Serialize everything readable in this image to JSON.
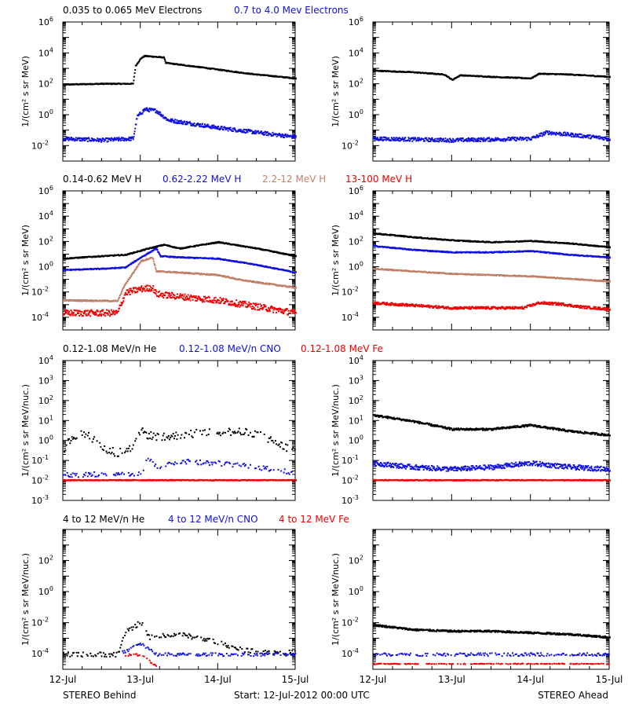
{
  "footer": {
    "left": "STEREO Behind",
    "center": "Start: 12-Jul-2012 00:00 UTC",
    "right": "STEREO Ahead"
  },
  "x_axis": {
    "ticks": [
      "12-Jul",
      "13-Jul",
      "14-Jul",
      "15-Jul"
    ],
    "range_days": [
      0,
      3
    ]
  },
  "colors": {
    "black": "#000000",
    "blue": "#1010dd",
    "tan": "#c08068",
    "red": "#ee0000"
  },
  "chart_data": [
    {
      "type": "scatter",
      "panel": "row1-left",
      "ylabel": "1/(cm² s sr MeV)",
      "ylim_log10": [
        -3,
        6
      ],
      "ytick_exponents": [
        -2,
        0,
        2,
        4,
        6
      ],
      "ytick_style": "power",
      "legend": [
        {
          "text": "0.035 to 0.065 MeV Electrons",
          "color": "black"
        },
        {
          "text": "0.7 to 4.0 Mev Electrons",
          "color": "blue"
        }
      ],
      "series": [
        {
          "name": "0.035 to 0.065 MeV Electrons",
          "color": "black",
          "noise": 0.03,
          "points": [
            [
              0,
              2.0
            ],
            [
              0.5,
              2.05
            ],
            [
              0.9,
              2.05
            ],
            [
              0.93,
              3.2
            ],
            [
              1.0,
              3.7
            ],
            [
              1.05,
              3.85
            ],
            [
              1.3,
              3.75
            ],
            [
              1.32,
              3.4
            ],
            [
              1.8,
              3.1
            ],
            [
              2.4,
              2.7
            ],
            [
              3.0,
              2.4
            ]
          ]
        },
        {
          "name": "0.7 to 4.0 Mev Electrons",
          "color": "blue",
          "noise": 0.12,
          "points": [
            [
              0,
              -1.5
            ],
            [
              0.5,
              -1.6
            ],
            [
              0.9,
              -1.5
            ],
            [
              0.95,
              -0.1
            ],
            [
              1.05,
              0.4
            ],
            [
              1.2,
              0.3
            ],
            [
              1.35,
              -0.3
            ],
            [
              2.0,
              -0.8
            ],
            [
              3.0,
              -1.4
            ]
          ]
        }
      ]
    },
    {
      "type": "scatter",
      "panel": "row1-right",
      "ylabel": "1/(cm² s sr MeV)",
      "ylim_log10": [
        -3,
        6
      ],
      "ytick_exponents": [
        -2,
        0,
        2,
        4,
        6
      ],
      "ytick_style": "power",
      "series": [
        {
          "color": "black",
          "noise": 0.03,
          "points": [
            [
              0,
              2.9
            ],
            [
              0.5,
              2.8
            ],
            [
              0.9,
              2.65
            ],
            [
              1.0,
              2.3
            ],
            [
              1.1,
              2.6
            ],
            [
              1.5,
              2.5
            ],
            [
              2.0,
              2.4
            ],
            [
              2.1,
              2.7
            ],
            [
              2.5,
              2.65
            ],
            [
              3.0,
              2.5
            ]
          ]
        },
        {
          "color": "blue",
          "noise": 0.12,
          "points": [
            [
              0,
              -1.5
            ],
            [
              1.0,
              -1.6
            ],
            [
              1.5,
              -1.55
            ],
            [
              2.0,
              -1.5
            ],
            [
              2.2,
              -1.1
            ],
            [
              2.6,
              -1.3
            ],
            [
              3.0,
              -1.5
            ]
          ]
        }
      ]
    },
    {
      "type": "scatter",
      "panel": "row2-left",
      "ylabel": "1/(cm² s sr MeV)",
      "ylim_log10": [
        -5,
        6
      ],
      "ytick_exponents": [
        -4,
        -2,
        0,
        2,
        4,
        6
      ],
      "ytick_style": "power",
      "legend": [
        {
          "text": "0.14-0.62 MeV H",
          "color": "black"
        },
        {
          "text": "0.62-2.22 MeV H",
          "color": "blue"
        },
        {
          "text": "2.2-12 MeV H",
          "color": "tan"
        },
        {
          "text": "13-100 MeV H",
          "color": "red"
        }
      ],
      "series": [
        {
          "name": "0.14-0.62 MeV H",
          "color": "black",
          "noise": 0.04,
          "points": [
            [
              0,
              0.7
            ],
            [
              0.5,
              0.9
            ],
            [
              0.8,
              1.0
            ],
            [
              1.1,
              1.5
            ],
            [
              1.3,
              1.8
            ],
            [
              1.5,
              1.5
            ],
            [
              2.0,
              2.0
            ],
            [
              2.5,
              1.5
            ],
            [
              3.0,
              0.9
            ]
          ]
        },
        {
          "name": "0.62-2.22 MeV H",
          "color": "blue",
          "noise": 0.04,
          "points": [
            [
              0,
              -0.2
            ],
            [
              0.5,
              -0.1
            ],
            [
              0.8,
              0.0
            ],
            [
              1.0,
              0.8
            ],
            [
              1.2,
              1.5
            ],
            [
              1.25,
              0.9
            ],
            [
              1.5,
              0.8
            ],
            [
              2.0,
              0.7
            ],
            [
              2.5,
              0.2
            ],
            [
              3.0,
              -0.4
            ]
          ]
        },
        {
          "name": "2.2-12 MeV H",
          "color": "tan",
          "noise": 0.05,
          "points": [
            [
              0,
              -2.6
            ],
            [
              0.7,
              -2.65
            ],
            [
              0.78,
              -1.5
            ],
            [
              1.0,
              0.5
            ],
            [
              1.15,
              0.8
            ],
            [
              1.2,
              -0.3
            ],
            [
              1.5,
              -0.4
            ],
            [
              2.0,
              -0.6
            ],
            [
              2.3,
              -1.0
            ],
            [
              3.0,
              -1.6
            ]
          ]
        },
        {
          "name": "13-100 MeV H",
          "color": "red",
          "noise": 0.25,
          "points": [
            [
              0,
              -3.6
            ],
            [
              0.7,
              -3.6
            ],
            [
              0.8,
              -2.0
            ],
            [
              1.0,
              -1.7
            ],
            [
              1.15,
              -1.6
            ],
            [
              1.2,
              -2.1
            ],
            [
              1.5,
              -2.3
            ],
            [
              2.0,
              -2.6
            ],
            [
              2.5,
              -3.1
            ],
            [
              3.0,
              -3.6
            ]
          ]
        }
      ]
    },
    {
      "type": "scatter",
      "panel": "row2-right",
      "ylabel": "1/(cm² s sr MeV)",
      "ylim_log10": [
        -5,
        6
      ],
      "ytick_exponents": [
        -4,
        -2,
        0,
        2,
        4,
        6
      ],
      "ytick_style": "power",
      "series": [
        {
          "color": "black",
          "noise": 0.04,
          "points": [
            [
              0,
              2.7
            ],
            [
              0.5,
              2.4
            ],
            [
              1.0,
              2.15
            ],
            [
              1.5,
              2.0
            ],
            [
              2.0,
              2.1
            ],
            [
              2.5,
              1.9
            ],
            [
              3.0,
              1.6
            ]
          ]
        },
        {
          "color": "blue",
          "noise": 0.04,
          "points": [
            [
              0,
              1.7
            ],
            [
              0.5,
              1.4
            ],
            [
              1.0,
              1.2
            ],
            [
              1.5,
              1.2
            ],
            [
              2.0,
              1.3
            ],
            [
              2.5,
              1.0
            ],
            [
              3.0,
              0.8
            ]
          ]
        },
        {
          "color": "tan",
          "noise": 0.04,
          "points": [
            [
              0,
              -0.1
            ],
            [
              0.5,
              -0.3
            ],
            [
              1.0,
              -0.5
            ],
            [
              1.5,
              -0.6
            ],
            [
              2.0,
              -0.7
            ],
            [
              2.5,
              -0.9
            ],
            [
              3.0,
              -1.1
            ]
          ]
        },
        {
          "color": "red",
          "noise": 0.1,
          "points": [
            [
              0,
              -2.8
            ],
            [
              0.5,
              -3.0
            ],
            [
              1.0,
              -3.2
            ],
            [
              1.5,
              -3.2
            ],
            [
              1.9,
              -3.2
            ],
            [
              2.1,
              -2.8
            ],
            [
              2.4,
              -2.9
            ],
            [
              2.6,
              -3.1
            ],
            [
              3.0,
              -3.3
            ]
          ]
        }
      ]
    },
    {
      "type": "scatter",
      "panel": "row3-left",
      "ylabel": "1/(cm² s sr MeV/nuc.)",
      "ylim_log10": [
        -3,
        4
      ],
      "ytick_exponents": [
        -3,
        -2,
        -1,
        0,
        1,
        2,
        3,
        4
      ],
      "ytick_style": "power",
      "legend": [
        {
          "text": "0.12-1.08 MeV/n He",
          "color": "black"
        },
        {
          "text": "0.12-1.08 MeV/n CNO",
          "color": "blue"
        },
        {
          "text": "0.12-1.08 MeV Fe",
          "color": "red"
        }
      ],
      "series": [
        {
          "name": "0.12-1.08 MeV/n He",
          "color": "black",
          "noise": 0.2,
          "sparse": true,
          "points": [
            [
              0,
              -0.5
            ],
            [
              0.1,
              0.2
            ],
            [
              0.3,
              0.4
            ],
            [
              0.5,
              -0.3
            ],
            [
              0.7,
              -0.6
            ],
            [
              0.9,
              -0.3
            ],
            [
              1.0,
              0.5
            ],
            [
              1.1,
              0.3
            ],
            [
              1.3,
              0.2
            ],
            [
              1.5,
              0.3
            ],
            [
              2.0,
              0.5
            ],
            [
              2.5,
              0.4
            ],
            [
              2.8,
              -0.2
            ],
            [
              3.0,
              -0.5
            ]
          ]
        },
        {
          "name": "0.12-1.08 MeV/n CNO",
          "color": "blue",
          "noise": 0.12,
          "sparse": true,
          "points": [
            [
              0,
              -1.7
            ],
            [
              1.0,
              -1.6
            ],
            [
              1.1,
              -0.8
            ],
            [
              1.2,
              -1.3
            ],
            [
              1.5,
              -1.0
            ],
            [
              2.0,
              -1.1
            ],
            [
              2.5,
              -1.3
            ],
            [
              3.0,
              -1.6
            ]
          ]
        },
        {
          "name": "0.12-1.08 MeV Fe",
          "color": "red",
          "noise": 0.02,
          "points": [
            [
              0,
              -1.95
            ],
            [
              3.0,
              -1.95
            ]
          ]
        }
      ]
    },
    {
      "type": "scatter",
      "panel": "row3-right",
      "ylabel": "1/(cm² s sr MeV/nuc.)",
      "ylim_log10": [
        -3,
        4
      ],
      "ytick_exponents": [
        -3,
        -2,
        -1,
        0,
        1,
        2,
        3,
        4
      ],
      "ytick_style": "power",
      "series": [
        {
          "color": "black",
          "noise": 0.05,
          "points": [
            [
              0,
              1.3
            ],
            [
              0.5,
              1.0
            ],
            [
              1.0,
              0.6
            ],
            [
              1.5,
              0.6
            ],
            [
              2.0,
              0.8
            ],
            [
              2.5,
              0.5
            ],
            [
              3.0,
              0.3
            ]
          ]
        },
        {
          "color": "blue",
          "noise": 0.12,
          "points": [
            [
              0,
              -1.1
            ],
            [
              0.5,
              -1.3
            ],
            [
              1.0,
              -1.4
            ],
            [
              1.5,
              -1.3
            ],
            [
              2.0,
              -1.1
            ],
            [
              2.5,
              -1.3
            ],
            [
              3.0,
              -1.4
            ]
          ]
        },
        {
          "color": "red",
          "noise": 0.02,
          "points": [
            [
              0,
              -1.95
            ],
            [
              3.0,
              -1.95
            ]
          ]
        }
      ]
    },
    {
      "type": "scatter",
      "panel": "row4-left",
      "ylabel": "1/(cm² s sr MeV/nuc.)",
      "ylim_log10": [
        -5,
        4
      ],
      "ytick_exponents": [
        -4,
        -2,
        0,
        2
      ],
      "ytick_style": "power",
      "legend": [
        {
          "text": "4 to 12 MeV/n He",
          "color": "black"
        },
        {
          "text": "4 to 12 MeV/n CNO",
          "color": "blue"
        },
        {
          "text": "4 to 12 MeV Fe",
          "color": "red"
        }
      ],
      "series": [
        {
          "name": "4 to 12 MeV/n He",
          "color": "black",
          "noise": 0.15,
          "sparse": true,
          "points": [
            [
              0,
              -4.0
            ],
            [
              0.7,
              -4.0
            ],
            [
              0.8,
              -2.6
            ],
            [
              1.0,
              -1.9
            ],
            [
              1.1,
              -2.9
            ],
            [
              1.5,
              -2.7
            ],
            [
              2.0,
              -3.2
            ],
            [
              2.2,
              -3.6
            ],
            [
              2.5,
              -3.8
            ],
            [
              3.0,
              -3.9
            ]
          ]
        },
        {
          "name": "4 to 12 MeV/n CNO",
          "color": "blue",
          "noise": 0.1,
          "sparse": true,
          "points": [
            [
              0.75,
              -3.9
            ],
            [
              1.0,
              -3.3
            ],
            [
              1.2,
              -4.0
            ],
            [
              3.0,
              -4.0
            ]
          ]
        },
        {
          "name": "4 to 12 MeV Fe",
          "color": "red",
          "noise": 0.1,
          "sparse": true,
          "points": [
            [
              0.8,
              -4.0
            ],
            [
              1.0,
              -4.0
            ],
            [
              1.2,
              -4.7
            ]
          ]
        }
      ]
    },
    {
      "type": "scatter",
      "panel": "row4-right",
      "ylabel": "1/(cm² s sr MeV/nuc.)",
      "ylim_log10": [
        -5,
        4
      ],
      "ytick_exponents": [
        -4,
        -2,
        0,
        2
      ],
      "ytick_style": "power",
      "series": [
        {
          "color": "black",
          "noise": 0.06,
          "points": [
            [
              0,
              -2.1
            ],
            [
              0.5,
              -2.4
            ],
            [
              1.0,
              -2.5
            ],
            [
              1.5,
              -2.5
            ],
            [
              2.0,
              -2.6
            ],
            [
              2.5,
              -2.7
            ],
            [
              3.0,
              -2.9
            ]
          ]
        },
        {
          "color": "blue",
          "noise": 0.1,
          "sparse": true,
          "points": [
            [
              0,
              -4.0
            ],
            [
              3.0,
              -4.0
            ]
          ]
        },
        {
          "color": "red",
          "noise": 0.02,
          "sparse": true,
          "points": [
            [
              0,
              -4.6
            ],
            [
              3.0,
              -4.6
            ]
          ]
        }
      ]
    }
  ]
}
